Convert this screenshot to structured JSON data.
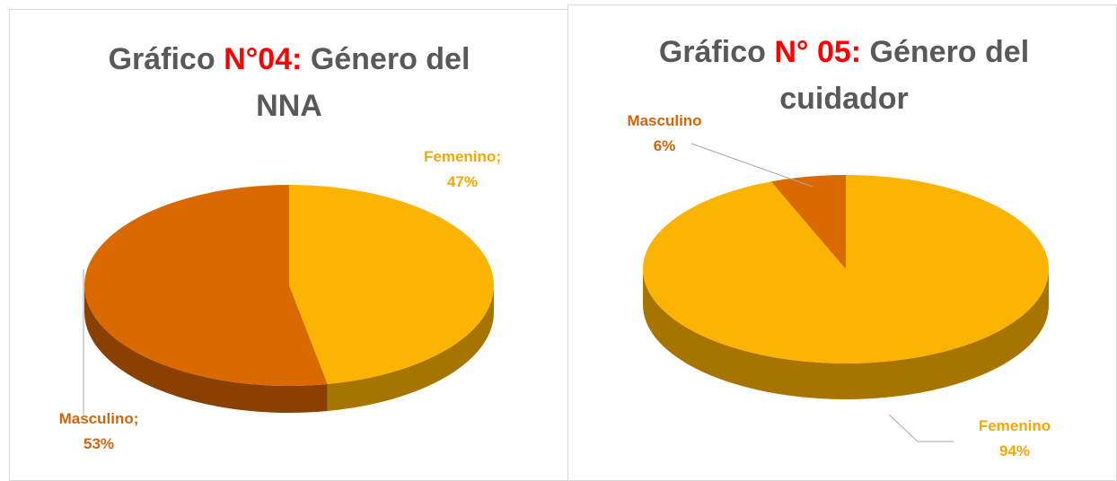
{
  "chart_data": [
    {
      "type": "pie",
      "title": [
        "Gráfico",
        "N°04:",
        "Género del NNA"
      ],
      "categories": [
        "Femenino",
        "Masculino"
      ],
      "values": [
        47,
        53
      ],
      "value_labels": [
        "47%",
        "53%"
      ],
      "label_separator": ";",
      "colors": [
        "#fbb404",
        "#da6a00"
      ],
      "side_colors": [
        "#a87400",
        "#8a4000"
      ]
    },
    {
      "type": "pie",
      "title": [
        "Gráfico",
        "N° 05:",
        "Género del cuidador"
      ],
      "categories": [
        "Femenino",
        "Masculino"
      ],
      "values": [
        94,
        6
      ],
      "value_labels": [
        "94%",
        "6%"
      ],
      "colors": [
        "#fbb404",
        "#da6a00"
      ],
      "side_colors": [
        "#a87400",
        "#8a4000"
      ]
    }
  ]
}
